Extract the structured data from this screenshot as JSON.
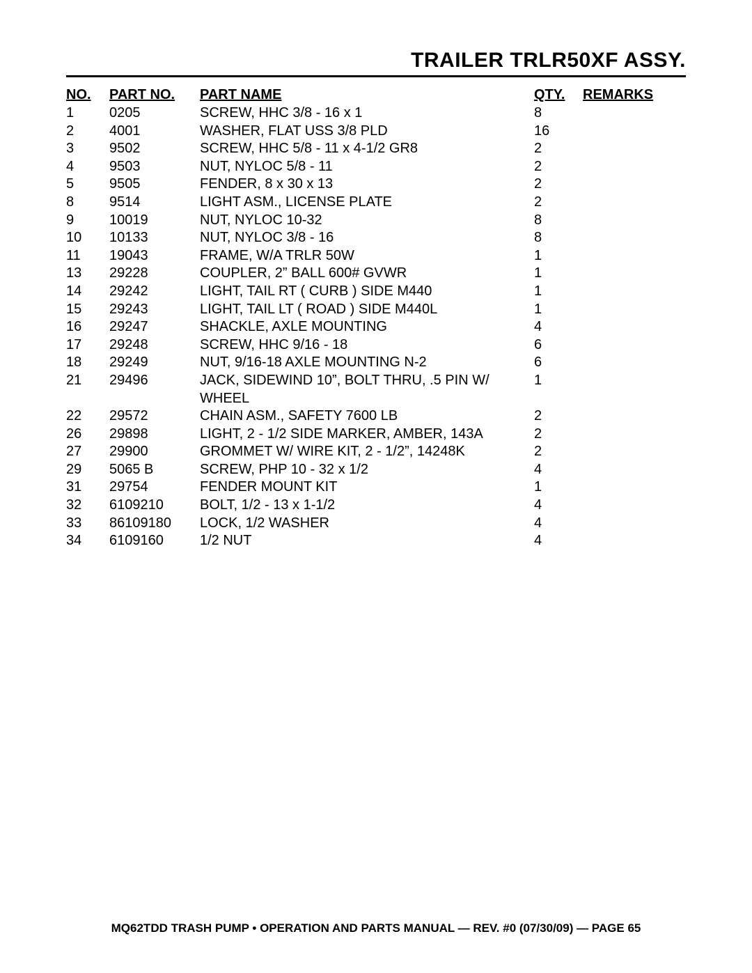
{
  "title": "TRAILER TRLR50XF ASSY.",
  "headers": {
    "no": "NO.",
    "part_no": "PART NO.",
    "part_name": "PART NAME",
    "qty": "QTY.",
    "remarks": "REMARKS"
  },
  "rows": [
    {
      "no": "1",
      "part": "0205",
      "name": "SCREW, HHC 3/8 - 16 x 1",
      "qty": "8",
      "remarks": ""
    },
    {
      "no": "2",
      "part": "4001",
      "name": "WASHER, FLAT USS 3/8 PLD",
      "qty": "16",
      "remarks": ""
    },
    {
      "no": "3",
      "part": "9502",
      "name": "SCREW, HHC 5/8 - 11 x 4-1/2 GR8",
      "qty": "2",
      "remarks": ""
    },
    {
      "no": "4",
      "part": "9503",
      "name": "NUT, NYLOC 5/8 - 11",
      "qty": "2",
      "remarks": ""
    },
    {
      "no": "5",
      "part": "9505",
      "name": "FENDER, 8 x 30 x 13",
      "qty": "2",
      "remarks": ""
    },
    {
      "no": "8",
      "part": "9514",
      "name": "LIGHT ASM., LICENSE PLATE",
      "qty": "2",
      "remarks": ""
    },
    {
      "no": "9",
      "part": "10019",
      "name": "NUT, NYLOC 10-32",
      "qty": "8",
      "remarks": ""
    },
    {
      "no": "10",
      "part": "10133",
      "name": "NUT, NYLOC 3/8 - 16",
      "qty": "8",
      "remarks": ""
    },
    {
      "no": "11",
      "part": "19043",
      "name": "FRAME, W/A TRLR 50W",
      "qty": "1",
      "remarks": ""
    },
    {
      "no": "13",
      "part": "29228",
      "name": "COUPLER, 2” BALL 600# GVWR",
      "qty": "1",
      "remarks": ""
    },
    {
      "no": "14",
      "part": "29242",
      "name": "LIGHT, TAIL RT ( CURB ) SIDE M440",
      "qty": "1",
      "remarks": ""
    },
    {
      "no": "15",
      "part": "29243",
      "name": "LIGHT, TAIL LT ( ROAD ) SIDE M440L",
      "qty": "1",
      "remarks": ""
    },
    {
      "no": "16",
      "part": "29247",
      "name": "SHACKLE, AXLE MOUNTING",
      "qty": "4",
      "remarks": ""
    },
    {
      "no": "17",
      "part": "29248",
      "name": "SCREW, HHC 9/16 - 18",
      "qty": "6",
      "remarks": ""
    },
    {
      "no": "18",
      "part": "29249",
      "name": "NUT, 9/16-18 AXLE MOUNTING N-2",
      "qty": "6",
      "remarks": ""
    },
    {
      "no": "21",
      "part": "29496",
      "name": "JACK, SIDEWIND 10”, BOLT THRU, .5 PIN W/ WHEEL",
      "qty": "1",
      "remarks": ""
    },
    {
      "no": "22",
      "part": "29572",
      "name": "CHAIN ASM., SAFETY 7600 LB",
      "qty": "2",
      "remarks": ""
    },
    {
      "no": "26",
      "part": "29898",
      "name": "LIGHT, 2 - 1/2 SIDE MARKER, AMBER, 143A",
      "qty": "2",
      "remarks": ""
    },
    {
      "no": "27",
      "part": "29900",
      "name": "GROMMET W/ WIRE KIT, 2 - 1/2”, 14248K",
      "qty": "2",
      "remarks": ""
    },
    {
      "no": "29",
      "part": "5065 B",
      "name": "SCREW, PHP 10 - 32 x 1/2",
      "qty": "4",
      "remarks": ""
    },
    {
      "no": "31",
      "part": "29754",
      "name": "FENDER MOUNT KIT",
      "qty": "1",
      "remarks": ""
    },
    {
      "no": "32",
      "part": "6109210",
      "name": "BOLT, 1/2 - 13 x 1-1/2",
      "qty": "4",
      "remarks": ""
    },
    {
      "no": "33",
      "part": "86109180",
      "name": "LOCK, 1/2 WASHER",
      "qty": "4",
      "remarks": ""
    },
    {
      "no": "34",
      "part": "6109160",
      "name": "1/2 NUT",
      "qty": "4",
      "remarks": ""
    }
  ],
  "footer": "MQ62TDD TRASH PUMP • OPERATION AND PARTS MANUAL — REV. #0 (07/30/09) — PAGE 65"
}
